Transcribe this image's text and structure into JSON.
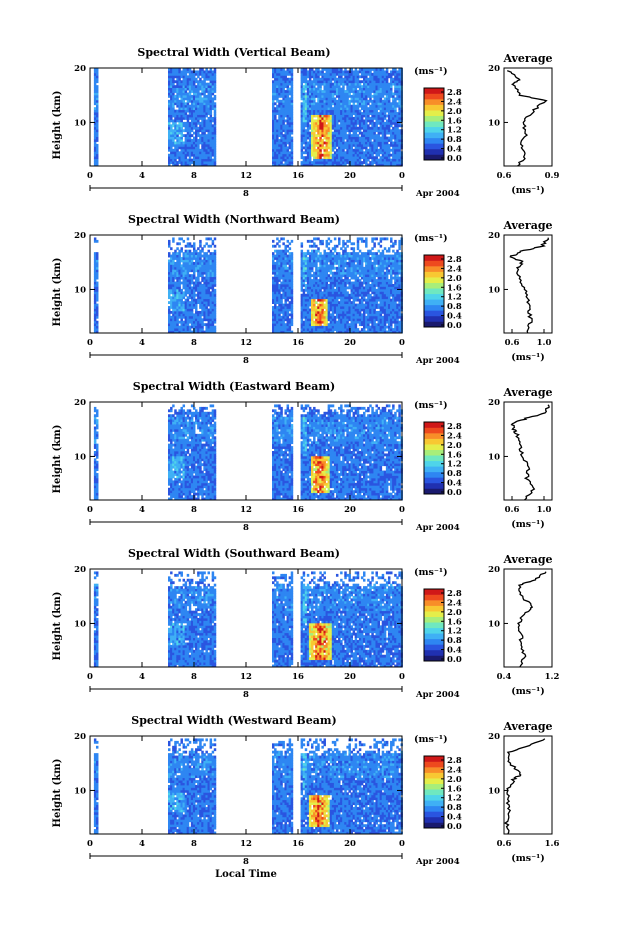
{
  "figure": {
    "xlabel": "Local Time",
    "date_label": "Apr 2004",
    "day_label": "8",
    "colorbar_unit": "(ms⁻¹)",
    "colorbar_ticks": [
      "0.0",
      "0.4",
      "0.8",
      "1.2",
      "1.6",
      "2.0",
      "2.4",
      "2.8"
    ],
    "avg_title": "Average",
    "avg_unit": "(ms⁻¹)",
    "y_label": "Height (km)",
    "colorscale": [
      "#1a1a6e",
      "#2030b0",
      "#2a55e0",
      "#2e86f2",
      "#3fb0f5",
      "#4fd4ea",
      "#6fe8c0",
      "#a8ee7a",
      "#e4ee4a",
      "#f8c832",
      "#f88e28",
      "#ee4a1e",
      "#d01818"
    ],
    "missing_color": "#ffffff"
  },
  "chart_data": [
    {
      "type": "heatmap",
      "title": "Spectral Width (Vertical Beam)",
      "xlabel": "Local Time",
      "ylabel": "Height (km)",
      "xlim": [
        0,
        24
      ],
      "ylim": [
        2,
        20
      ],
      "x_ticks": [
        "0",
        "4",
        "8",
        "12",
        "16",
        "20",
        "0"
      ],
      "y_ticks": [
        "10",
        "20"
      ],
      "zlim": [
        0,
        2.8
      ],
      "data_intervals_h": [
        [
          0.3,
          0.6
        ],
        [
          6.0,
          9.6
        ],
        [
          14.0,
          15.5
        ],
        [
          16.2,
          24.0
        ]
      ],
      "top_km": 20,
      "peak": {
        "t_start": 17.0,
        "t_end": 18.5,
        "h_bottom": 3,
        "h_top": 11
      },
      "average": {
        "xlim": [
          0.6,
          0.9
        ],
        "x_ticks": [
          "0.6",
          "0.9"
        ],
        "h": [
          2,
          4,
          6,
          8,
          10,
          12,
          14,
          15,
          17,
          18,
          19.5
        ],
        "v": [
          0.68,
          0.74,
          0.7,
          0.74,
          0.72,
          0.78,
          0.86,
          0.7,
          0.66,
          0.7,
          0.62
        ]
      }
    },
    {
      "type": "heatmap",
      "title": "Spectral Width (Northward Beam)",
      "xlabel": "Local Time",
      "ylabel": "Height (km)",
      "xlim": [
        0,
        24
      ],
      "ylim": [
        2,
        20
      ],
      "x_ticks": [
        "0",
        "4",
        "8",
        "12",
        "16",
        "20",
        "0"
      ],
      "y_ticks": [
        "10",
        "20"
      ],
      "zlim": [
        0,
        2.8
      ],
      "data_intervals_h": [
        [
          0.3,
          0.6
        ],
        [
          6.0,
          9.6
        ],
        [
          14.0,
          15.5
        ],
        [
          16.2,
          24.0
        ]
      ],
      "top_km": 17,
      "peak": {
        "t_start": 16.9,
        "t_end": 18.2,
        "h_bottom": 3,
        "h_top": 8
      },
      "average": {
        "xlim": [
          0.5,
          1.1
        ],
        "x_ticks": [
          "0.6",
          "1.0"
        ],
        "h": [
          2,
          4,
          6,
          8,
          10,
          12,
          14,
          15,
          16,
          17,
          18,
          19.5
        ],
        "v": [
          0.78,
          0.84,
          0.82,
          0.8,
          0.76,
          0.7,
          0.66,
          0.74,
          0.58,
          0.72,
          0.98,
          1.05
        ]
      }
    },
    {
      "type": "heatmap",
      "title": "Spectral Width (Eastward Beam)",
      "xlabel": "Local Time",
      "ylabel": "Height (km)",
      "xlim": [
        0,
        24
      ],
      "ylim": [
        2,
        20
      ],
      "x_ticks": [
        "0",
        "4",
        "8",
        "12",
        "16",
        "20",
        "0"
      ],
      "y_ticks": [
        "10",
        "20"
      ],
      "zlim": [
        0,
        2.8
      ],
      "data_intervals_h": [
        [
          0.3,
          0.6
        ],
        [
          6.0,
          9.6
        ],
        [
          14.0,
          15.5
        ],
        [
          16.2,
          24.0
        ]
      ],
      "top_km": 18,
      "peak": {
        "t_start": 16.9,
        "t_end": 18.3,
        "h_bottom": 3,
        "h_top": 10
      },
      "average": {
        "xlim": [
          0.5,
          1.1
        ],
        "x_ticks": [
          "0.6",
          "1.0"
        ],
        "h": [
          2,
          4,
          6,
          8,
          10,
          12,
          14,
          15,
          16,
          17,
          18,
          19.5
        ],
        "v": [
          0.74,
          0.88,
          0.78,
          0.82,
          0.74,
          0.7,
          0.66,
          0.62,
          0.6,
          0.78,
          1.02,
          1.05
        ]
      }
    },
    {
      "type": "heatmap",
      "title": "Spectral Width (Southward Beam)",
      "xlabel": "Local Time",
      "ylabel": "Height (km)",
      "xlim": [
        0,
        24
      ],
      "ylim": [
        2,
        20
      ],
      "x_ticks": [
        "0",
        "4",
        "8",
        "12",
        "16",
        "20",
        "0"
      ],
      "y_ticks": [
        "10",
        "20"
      ],
      "zlim": [
        0,
        2.8
      ],
      "data_intervals_h": [
        [
          0.3,
          0.6
        ],
        [
          6.0,
          9.6
        ],
        [
          14.0,
          15.5
        ],
        [
          16.2,
          24.0
        ]
      ],
      "top_km": 17,
      "peak": {
        "t_start": 16.8,
        "t_end": 18.5,
        "h_bottom": 3,
        "h_top": 10
      },
      "average": {
        "xlim": [
          0.4,
          1.2
        ],
        "x_ticks": [
          "0.4",
          "1.2"
        ],
        "h": [
          2,
          4,
          6,
          8,
          10,
          12,
          13,
          15,
          17,
          18,
          19.5
        ],
        "v": [
          0.68,
          0.74,
          0.7,
          0.68,
          0.64,
          0.76,
          0.88,
          0.7,
          0.66,
          0.9,
          1.1
        ]
      }
    },
    {
      "type": "heatmap",
      "title": "Spectral Width (Westward Beam)",
      "xlabel": "Local Time",
      "ylabel": "Height (km)",
      "xlim": [
        0,
        24
      ],
      "ylim": [
        2,
        20
      ],
      "x_ticks": [
        "0",
        "4",
        "8",
        "12",
        "16",
        "20",
        "0"
      ],
      "y_ticks": [
        "10",
        "20"
      ],
      "zlim": [
        0,
        2.8
      ],
      "data_intervals_h": [
        [
          0.3,
          0.6
        ],
        [
          6.0,
          9.6
        ],
        [
          14.0,
          15.5
        ],
        [
          16.2,
          24.0
        ]
      ],
      "top_km": 17,
      "peak": {
        "t_start": 16.8,
        "t_end": 18.3,
        "h_bottom": 3,
        "h_top": 9
      },
      "average": {
        "xlim": [
          0.6,
          1.6
        ],
        "x_ticks": [
          "0.6",
          "1.6"
        ],
        "h": [
          2,
          4,
          6,
          8,
          10,
          12,
          13,
          15,
          17,
          18,
          19.5
        ],
        "v": [
          0.7,
          0.66,
          0.74,
          0.68,
          0.66,
          0.8,
          0.96,
          0.72,
          0.7,
          1.05,
          1.45
        ]
      }
    }
  ]
}
